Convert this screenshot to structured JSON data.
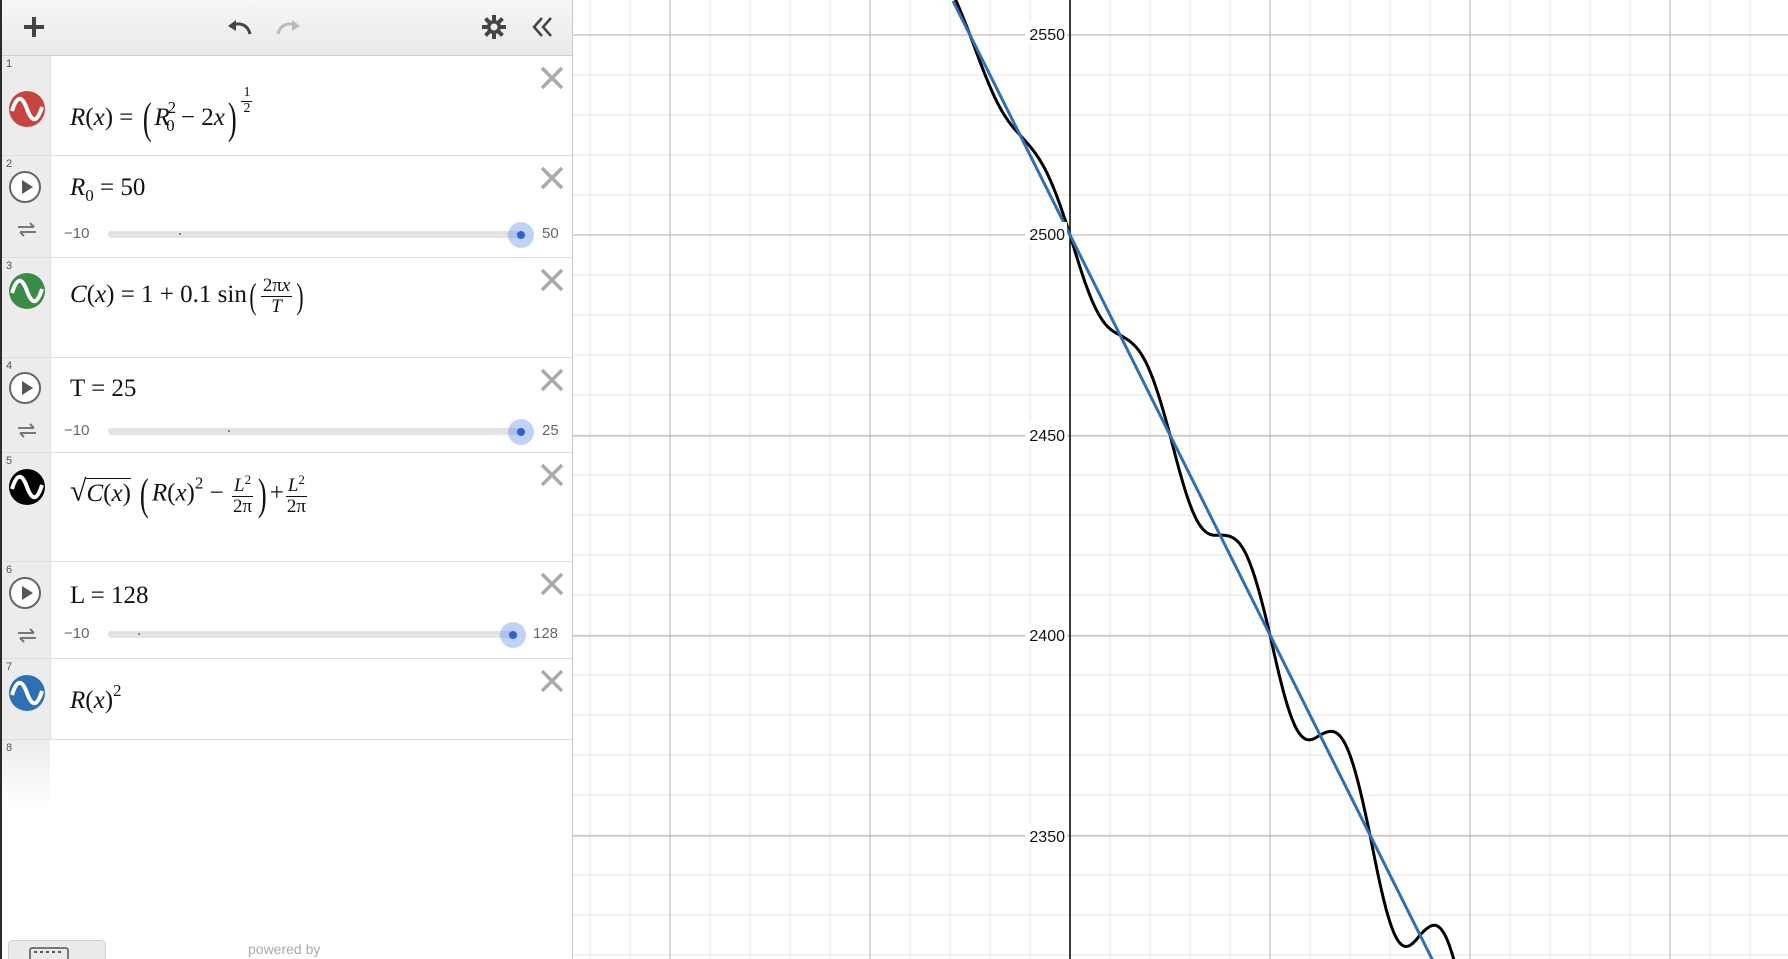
{
  "toolbar": {
    "add": "plus-icon",
    "undo": "undo-icon",
    "redo": "redo-icon",
    "settings": "gear-icon",
    "collapse": "double-chevron-left-icon"
  },
  "expressions": [
    {
      "index": "1",
      "color": "#c74440"
    },
    {
      "index": "2",
      "lhs": "R",
      "sub": "0",
      "eq": "= 50",
      "slider": {
        "min": "−10",
        "max": "50",
        "value": 50
      }
    },
    {
      "index": "3",
      "color": "#388c46"
    },
    {
      "index": "4",
      "text": "T = 25",
      "slider": {
        "min": "−10",
        "max": "25",
        "value": 25
      }
    },
    {
      "index": "5",
      "color": "#000000"
    },
    {
      "index": "6",
      "text": "L = 128",
      "slider": {
        "min": "−10",
        "max": "128",
        "value": 128
      }
    },
    {
      "index": "7",
      "color": "#2d70b3"
    },
    {
      "index": "8"
    }
  ],
  "footer": {
    "powered_by": "powered by"
  },
  "graph": {
    "y_labels": [
      "2550",
      "2500",
      "2450",
      "2400",
      "2350"
    ],
    "curve_colors": {
      "black": "#000000",
      "blue": "#2d70b3"
    }
  }
}
